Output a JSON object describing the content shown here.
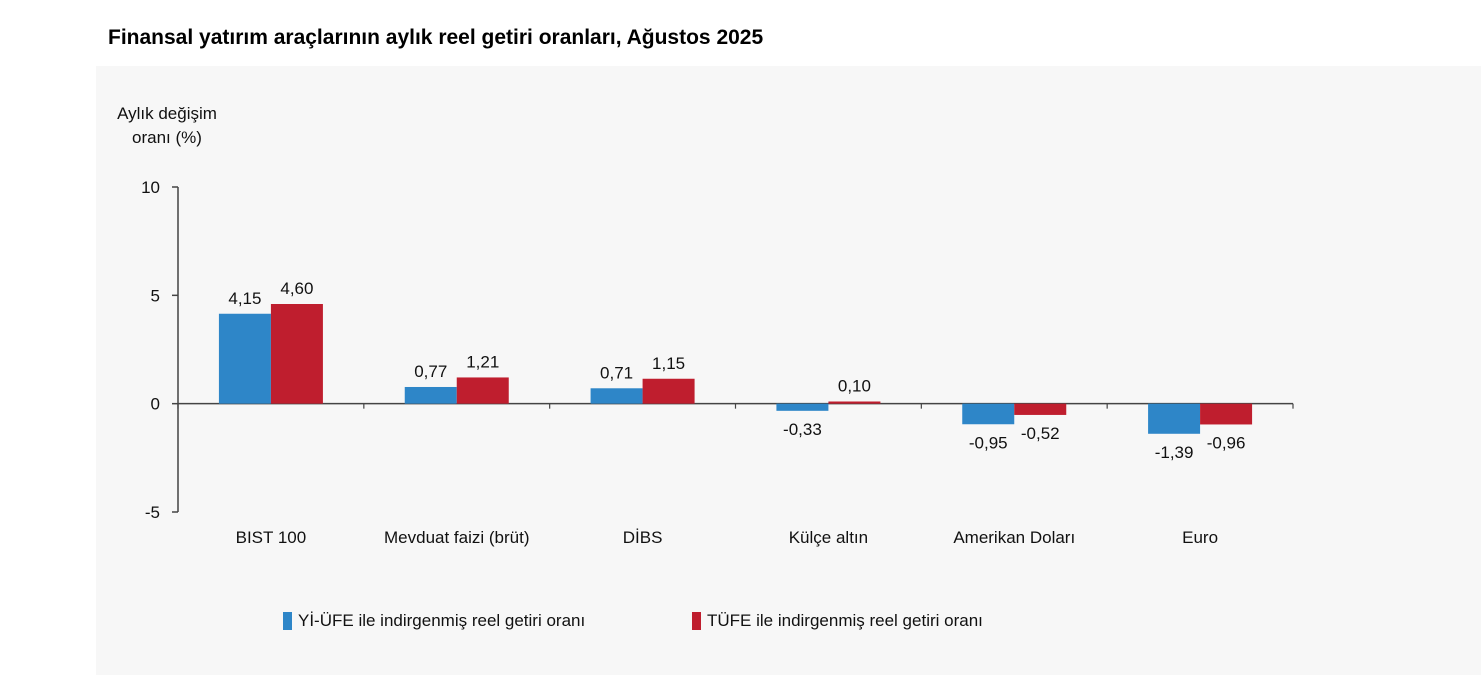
{
  "colors": {
    "series1": "#2E86C8",
    "series2": "#BF1E2E",
    "axis": "#444444",
    "panel": "#f7f7f7"
  },
  "chart_data": {
    "type": "bar",
    "title": "Finansal yatırım araçlarının aylık reel getiri oranları, Ağustos 2025",
    "ylabel_lines": [
      "Aylık değişim",
      "oranı (%)"
    ],
    "xlabel": "",
    "categories": [
      "BIST 100",
      "Mevduat faizi (brüt)",
      "DİBS",
      "Külçe altın",
      "Amerikan Doları",
      "Euro"
    ],
    "series": [
      {
        "name": "Yİ-ÜFE ile indirgenmiş reel getiri oranı",
        "values": [
          4.15,
          0.77,
          0.71,
          -0.33,
          -0.95,
          -1.39
        ],
        "labels": [
          "4,15",
          "0,77",
          "0,71",
          "-0,33",
          "-0,95",
          "-1,39"
        ]
      },
      {
        "name": "TÜFE ile indirgenmiş reel getiri oranı",
        "values": [
          4.6,
          1.21,
          1.15,
          0.1,
          -0.52,
          -0.96
        ],
        "labels": [
          "4,60",
          "1,21",
          "1,15",
          "0,10",
          "-0,52",
          "-0,96"
        ]
      }
    ],
    "ylim": [
      -5,
      10
    ],
    "yticks": [
      10,
      5,
      0,
      -5
    ],
    "grid": false,
    "legend_position": "bottom"
  }
}
